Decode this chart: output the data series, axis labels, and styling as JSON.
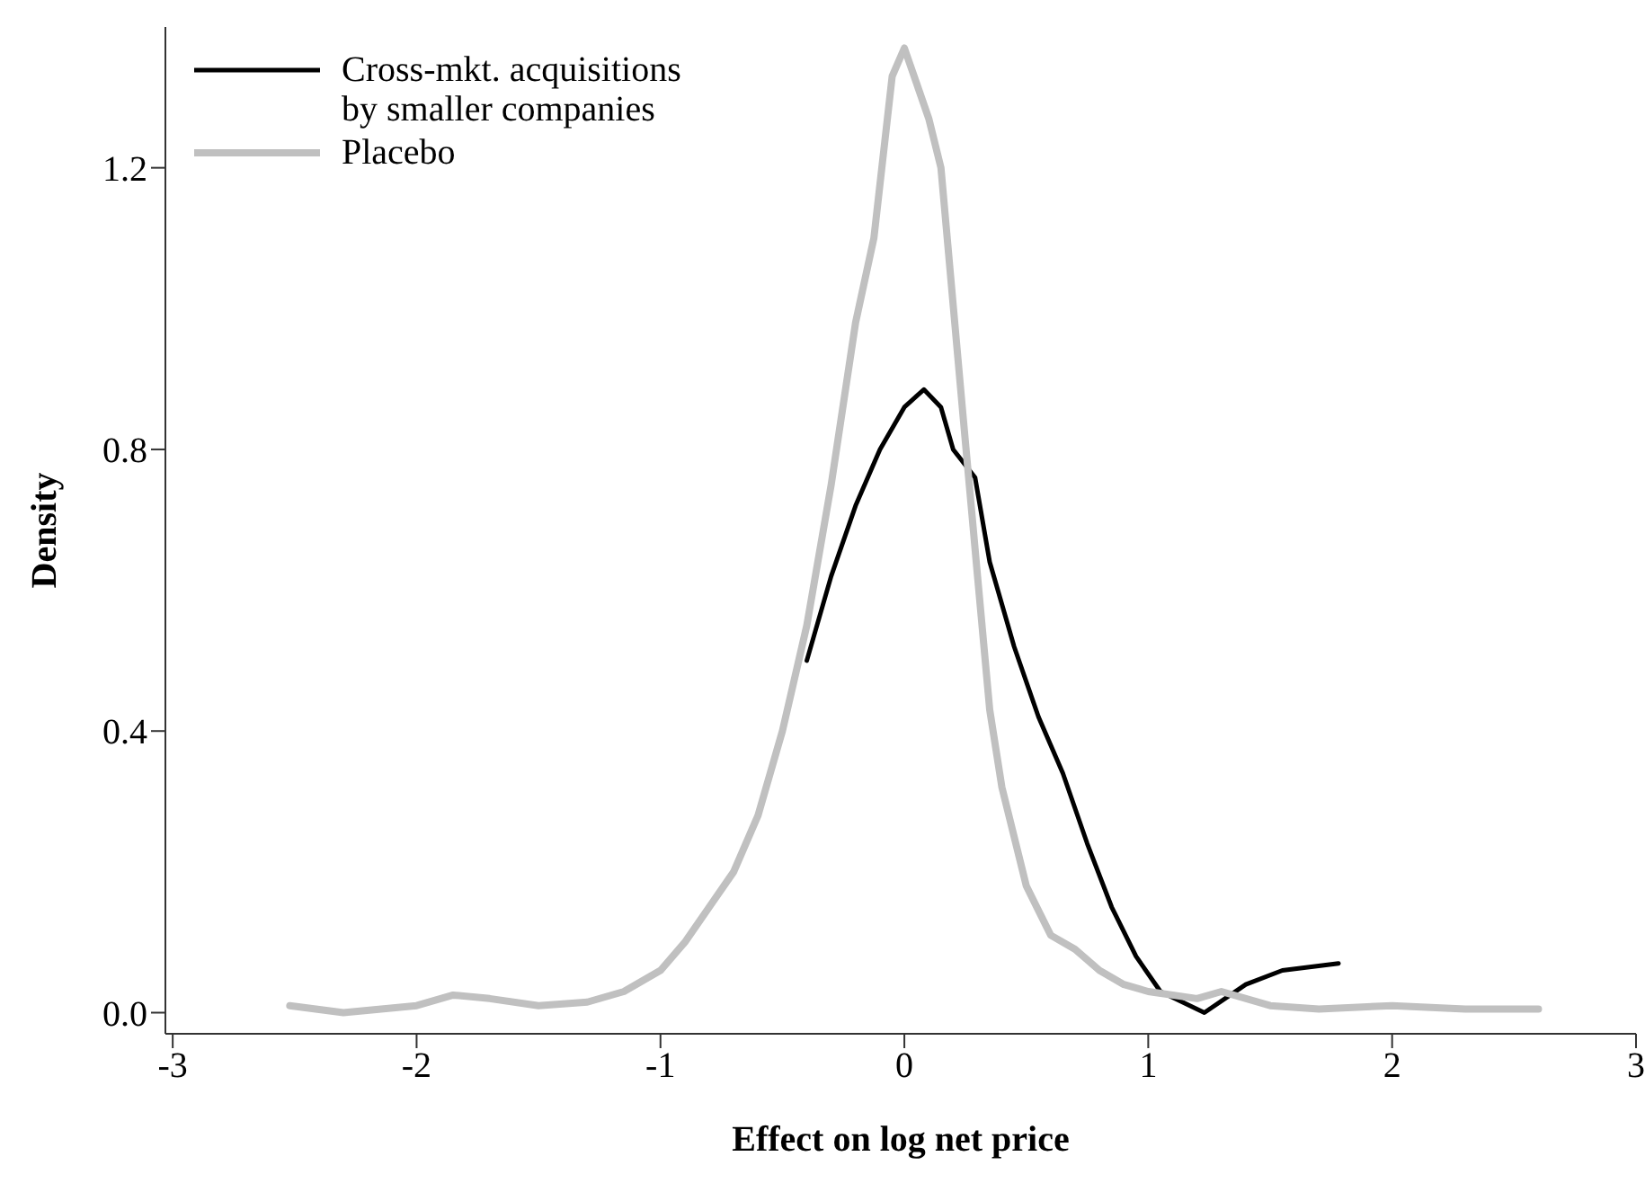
{
  "chart_data": {
    "type": "line",
    "xlabel": "Effect on log net price",
    "ylabel": "Density",
    "xlim": [
      -3.03,
      3.0
    ],
    "xticks": [
      -3,
      -2,
      -1,
      0,
      1,
      2,
      3
    ],
    "ylim": [
      -0.03,
      1.4
    ],
    "yticks": [
      {
        "value": 0,
        "label": "0.0"
      },
      {
        "value": 0.4,
        "label": "0.4"
      },
      {
        "value": 0.8,
        "label": "0.8"
      },
      {
        "value": 1.2,
        "label": "1.2"
      }
    ],
    "grid": false,
    "legend": "top left",
    "marker": "none",
    "series": [
      {
        "name": "Cross-mkt. acquisitions by smaller companies",
        "color": "#000000",
        "x": [
          -0.4,
          -0.3,
          -0.2,
          -0.1,
          0.0,
          0.08,
          0.15,
          0.2,
          0.29,
          0.35,
          0.45,
          0.55,
          0.65,
          0.75,
          0.85,
          0.95,
          1.05,
          1.23,
          1.4,
          1.55,
          1.78
        ],
        "values": [
          0.5,
          0.62,
          0.72,
          0.8,
          0.86,
          0.885,
          0.86,
          0.8,
          0.76,
          0.64,
          0.52,
          0.42,
          0.34,
          0.24,
          0.15,
          0.08,
          0.03,
          0.0,
          0.04,
          0.06,
          0.07
        ]
      },
      {
        "name": "Placebo",
        "color": "#c0c0c0",
        "x": [
          -2.52,
          -2.3,
          -2.0,
          -1.85,
          -1.7,
          -1.5,
          -1.3,
          -1.15,
          -1.0,
          -0.9,
          -0.8,
          -0.7,
          -0.6,
          -0.5,
          -0.4,
          -0.3,
          -0.2,
          -0.125,
          -0.05,
          0.0,
          0.05,
          0.1,
          0.15,
          0.24,
          0.3,
          0.35,
          0.4,
          0.5,
          0.6,
          0.7,
          0.8,
          0.9,
          1.0,
          1.2,
          1.3,
          1.5,
          1.7,
          2.0,
          2.3,
          2.6
        ],
        "values": [
          0.01,
          0.0,
          0.01,
          0.025,
          0.02,
          0.01,
          0.015,
          0.03,
          0.06,
          0.1,
          0.15,
          0.2,
          0.28,
          0.4,
          0.55,
          0.75,
          0.98,
          1.1,
          1.33,
          1.37,
          1.32,
          1.27,
          1.2,
          0.85,
          0.62,
          0.43,
          0.32,
          0.18,
          0.11,
          0.09,
          0.06,
          0.04,
          0.03,
          0.02,
          0.03,
          0.01,
          0.005,
          0.01,
          0.005,
          0.005
        ]
      }
    ]
  }
}
